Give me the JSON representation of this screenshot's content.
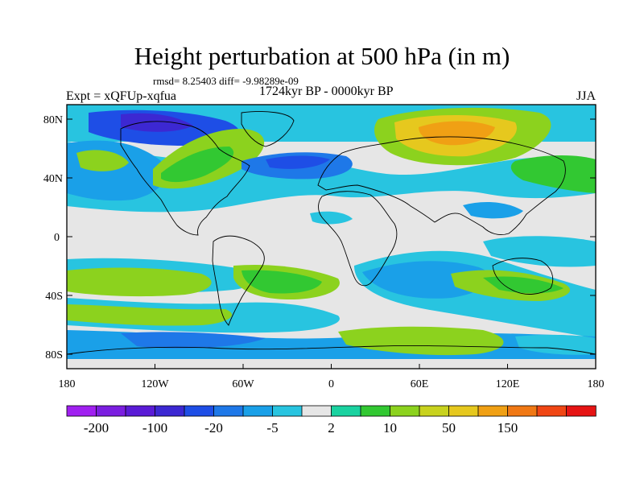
{
  "title": "Height perturbation at 500 hPa (in m)",
  "stats": "rmsd= 8.25403 diff= -9.98289e-09",
  "period": "1724kyr BP - 0000kyr BP",
  "experiment": "Expt = xQFUp-xqfua",
  "season": "JJA",
  "lat_labels": [
    "80N",
    "40N",
    "0",
    "40S",
    "80S"
  ],
  "lon_labels": [
    "180",
    "120W",
    "60W",
    "0",
    "60E",
    "120E",
    "180"
  ],
  "colorbar": {
    "colors": [
      "#a020f0",
      "#7b1ee0",
      "#5a1bd6",
      "#3c28d2",
      "#1e4ee6",
      "#1e78e8",
      "#1aa0e8",
      "#28c4e0",
      "#e6e6e6",
      "#1ad2a0",
      "#32c832",
      "#8cd21e",
      "#c8d21e",
      "#e6c81e",
      "#f0a014",
      "#f07814",
      "#f04614",
      "#e61414"
    ],
    "tick_labels": [
      "-200",
      "-100",
      "-20",
      "-5",
      "2",
      "10",
      "50",
      "150"
    ]
  }
}
